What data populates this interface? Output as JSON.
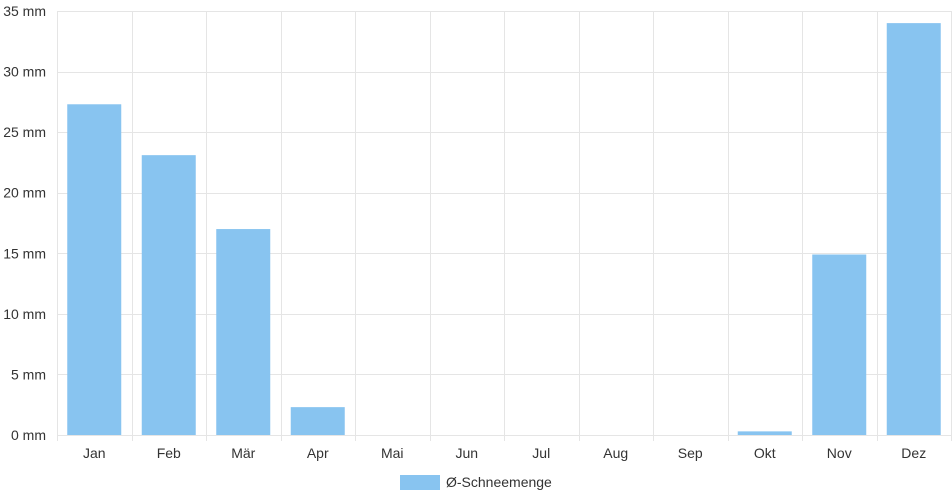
{
  "chart_data": {
    "type": "bar",
    "categories": [
      "Jan",
      "Feb",
      "Mär",
      "Apr",
      "Mai",
      "Jun",
      "Jul",
      "Aug",
      "Sep",
      "Okt",
      "Nov",
      "Dez"
    ],
    "series": [
      {
        "name": "Ø-Schneemenge",
        "values": [
          27.3,
          23.1,
          17.0,
          2.3,
          0,
          0,
          0,
          0,
          0,
          0.3,
          14.9,
          34.0
        ],
        "color": "#88c4f0"
      }
    ],
    "y_unit": "mm",
    "ylim": [
      0,
      35
    ],
    "yticks": [
      0,
      5,
      10,
      15,
      20,
      25,
      30,
      35
    ],
    "grid": true,
    "legend_position": "bottom-center"
  }
}
